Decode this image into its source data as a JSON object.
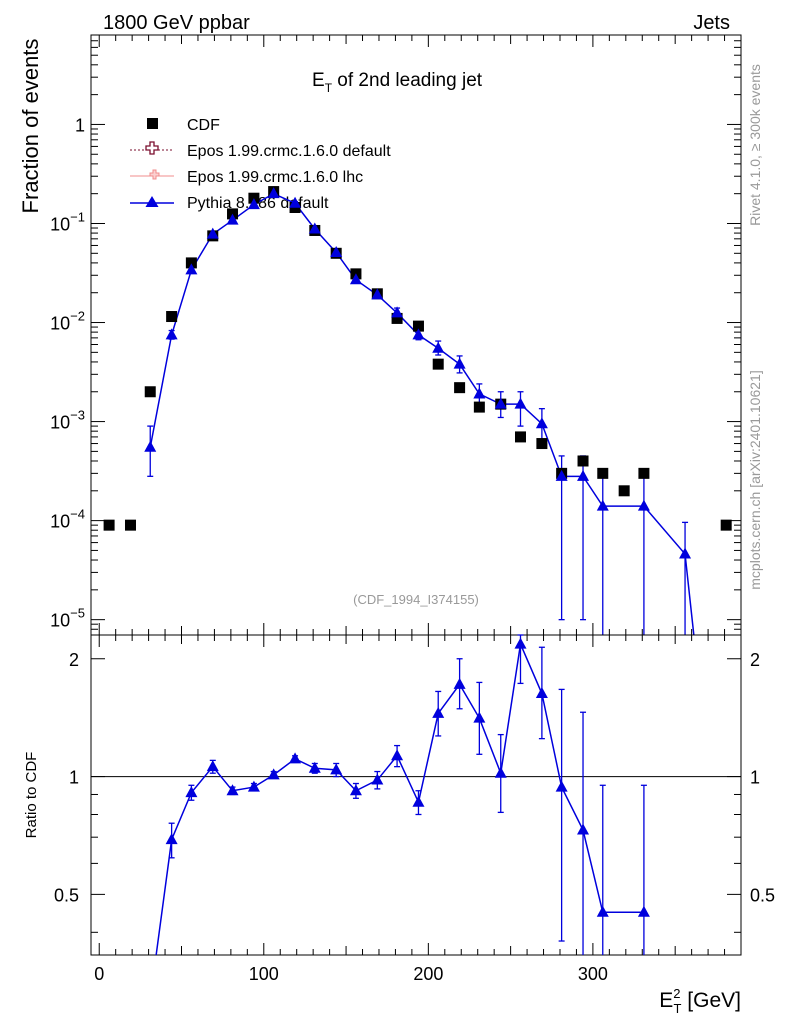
{
  "header": {
    "left": "1800 GeV ppbar",
    "right": "Jets"
  },
  "side_labels": {
    "rivet": "Rivet 4.1.0, ≥ 300k events",
    "mcplots": "mcplots.cern.ch [arXiv:2401.10621]"
  },
  "colors": {
    "cdf": "#000000",
    "epos_default": "#7a0d2e",
    "epos_lhc": "#f08c8c",
    "pythia": "#0000dd",
    "watermark": "#999999"
  },
  "chart_data": [
    {
      "type": "scatter",
      "title": "E_T of 2nd leading jet",
      "title_main": "E",
      "title_sub": "T",
      "title_rest": " of 2nd leading jet",
      "ylabel": "Fraction of events",
      "yscale": "log",
      "ylim": [
        7e-06,
        8
      ],
      "xlim": [
        -5,
        390
      ],
      "watermark": "(CDF_1994_I374155)",
      "y_tick_labels": [
        {
          "value": 1,
          "base": "1",
          "exp": ""
        },
        {
          "value": 0.1,
          "base": "10",
          "exp": "−1"
        },
        {
          "value": 0.01,
          "base": "10",
          "exp": "−2"
        },
        {
          "value": 0.001,
          "base": "10",
          "exp": "−3"
        },
        {
          "value": 0.0001,
          "base": "10",
          "exp": "−4"
        },
        {
          "value": 1e-05,
          "base": "10",
          "exp": "−5"
        }
      ],
      "legend": [
        {
          "name": "CDF",
          "style": "square"
        },
        {
          "name": "Epos 1.99.crmc.1.6.0 default",
          "style": "cross-dotted"
        },
        {
          "name": "Epos 1.99.crmc.1.6.0 lhc",
          "style": "cross-solid"
        },
        {
          "name": "Pythia 8.186 default",
          "style": "triangle-line"
        }
      ],
      "series": [
        {
          "name": "CDF",
          "x": [
            6,
            19,
            31,
            44,
            56,
            69,
            81,
            94,
            106,
            119,
            131,
            144,
            156,
            169,
            181,
            194,
            206,
            219,
            231,
            244,
            256,
            269,
            281,
            294,
            306,
            319,
            331,
            381
          ],
          "y": [
            9e-05,
            9e-05,
            0.002,
            0.0115,
            0.04,
            0.075,
            0.125,
            0.18,
            0.21,
            0.145,
            0.085,
            0.05,
            0.031,
            0.0195,
            0.011,
            0.0092,
            0.0038,
            0.0022,
            0.0014,
            0.0015,
            0.0007,
            0.0006,
            0.0003,
            0.0004,
            0.0003,
            0.0002,
            0.0003,
            9e-05
          ]
        },
        {
          "name": "Pythia 8.186 default",
          "x": [
            31,
            44,
            56,
            69,
            81,
            94,
            106,
            119,
            131,
            144,
            156,
            169,
            181,
            194,
            206,
            219,
            231,
            244,
            256,
            269,
            281,
            294,
            306,
            331,
            356
          ],
          "y": [
            0.00055,
            0.0075,
            0.034,
            0.078,
            0.108,
            0.155,
            0.2,
            0.16,
            0.088,
            0.051,
            0.027,
            0.019,
            0.0125,
            0.0075,
            0.0055,
            0.0038,
            0.0019,
            0.0015,
            0.0015,
            0.00095,
            0.00028,
            0.00028,
            0.00014,
            0.00014,
            4.6e-05
          ],
          "err_lo": [
            0.00027,
            0.0007,
            0.002,
            0.004,
            0.005,
            0.006,
            0.007,
            0.006,
            0.004,
            0.003,
            0.002,
            0.0015,
            0.0015,
            0.0008,
            0.0008,
            0.0007,
            0.0004,
            0.0004,
            0.0006,
            0.0004,
            0.00027,
            0.00027,
            0.00014,
            0.00014,
            4.6e-05
          ],
          "err_hi": [
            0.00035,
            0.0008,
            0.002,
            0.004,
            0.005,
            0.006,
            0.007,
            0.006,
            0.004,
            0.003,
            0.002,
            0.0015,
            0.0015,
            0.0008,
            0.001,
            0.0008,
            0.0005,
            0.0005,
            0.0005,
            0.0004,
            0.00017,
            0.00017,
            0.00016,
            0.00016,
            5e-05
          ]
        }
      ]
    },
    {
      "type": "line",
      "ylabel": "Ratio to CDF",
      "xlabel_main": "E",
      "xlabel_sup": "2",
      "xlabel_sub": "T",
      "xlabel_rest": " [GeV]",
      "xlim": [
        -5,
        390
      ],
      "ylim": [
        0.35,
        2.3
      ],
      "x_ticks": [
        0,
        100,
        200,
        300
      ],
      "y_tick_labels": [
        "0.5",
        "1",
        "2"
      ],
      "reference": 1,
      "series": [
        {
          "name": "Pythia 8.186 default",
          "x": [
            31,
            44,
            56,
            69,
            81,
            94,
            106,
            119,
            131,
            144,
            156,
            169,
            181,
            194,
            206,
            219,
            231,
            244,
            256,
            269,
            281,
            294,
            306,
            331
          ],
          "y": [
            0.27,
            0.69,
            0.91,
            1.06,
            0.92,
            0.94,
            1.01,
            1.11,
            1.05,
            1.04,
            0.92,
            0.98,
            1.13,
            0.86,
            1.45,
            1.72,
            1.41,
            1.02,
            2.18,
            1.63,
            0.94,
            0.73,
            0.45,
            0.45
          ],
          "err_lo": [
            0.13,
            0.07,
            0.04,
            0.04,
            0.02,
            0.02,
            0.02,
            0.02,
            0.03,
            0.04,
            0.04,
            0.05,
            0.07,
            0.06,
            0.18,
            0.23,
            0.27,
            0.21,
            0.45,
            0.38,
            0.56,
            0.53,
            0.35,
            0.35
          ],
          "err_hi": [
            0.13,
            0.07,
            0.04,
            0.04,
            0.02,
            0.02,
            0.02,
            0.02,
            0.03,
            0.04,
            0.04,
            0.05,
            0.07,
            0.06,
            0.2,
            0.28,
            0.33,
            0.26,
            0.27,
            0.51,
            0.73,
            0.73,
            0.5,
            0.5
          ]
        }
      ]
    }
  ]
}
